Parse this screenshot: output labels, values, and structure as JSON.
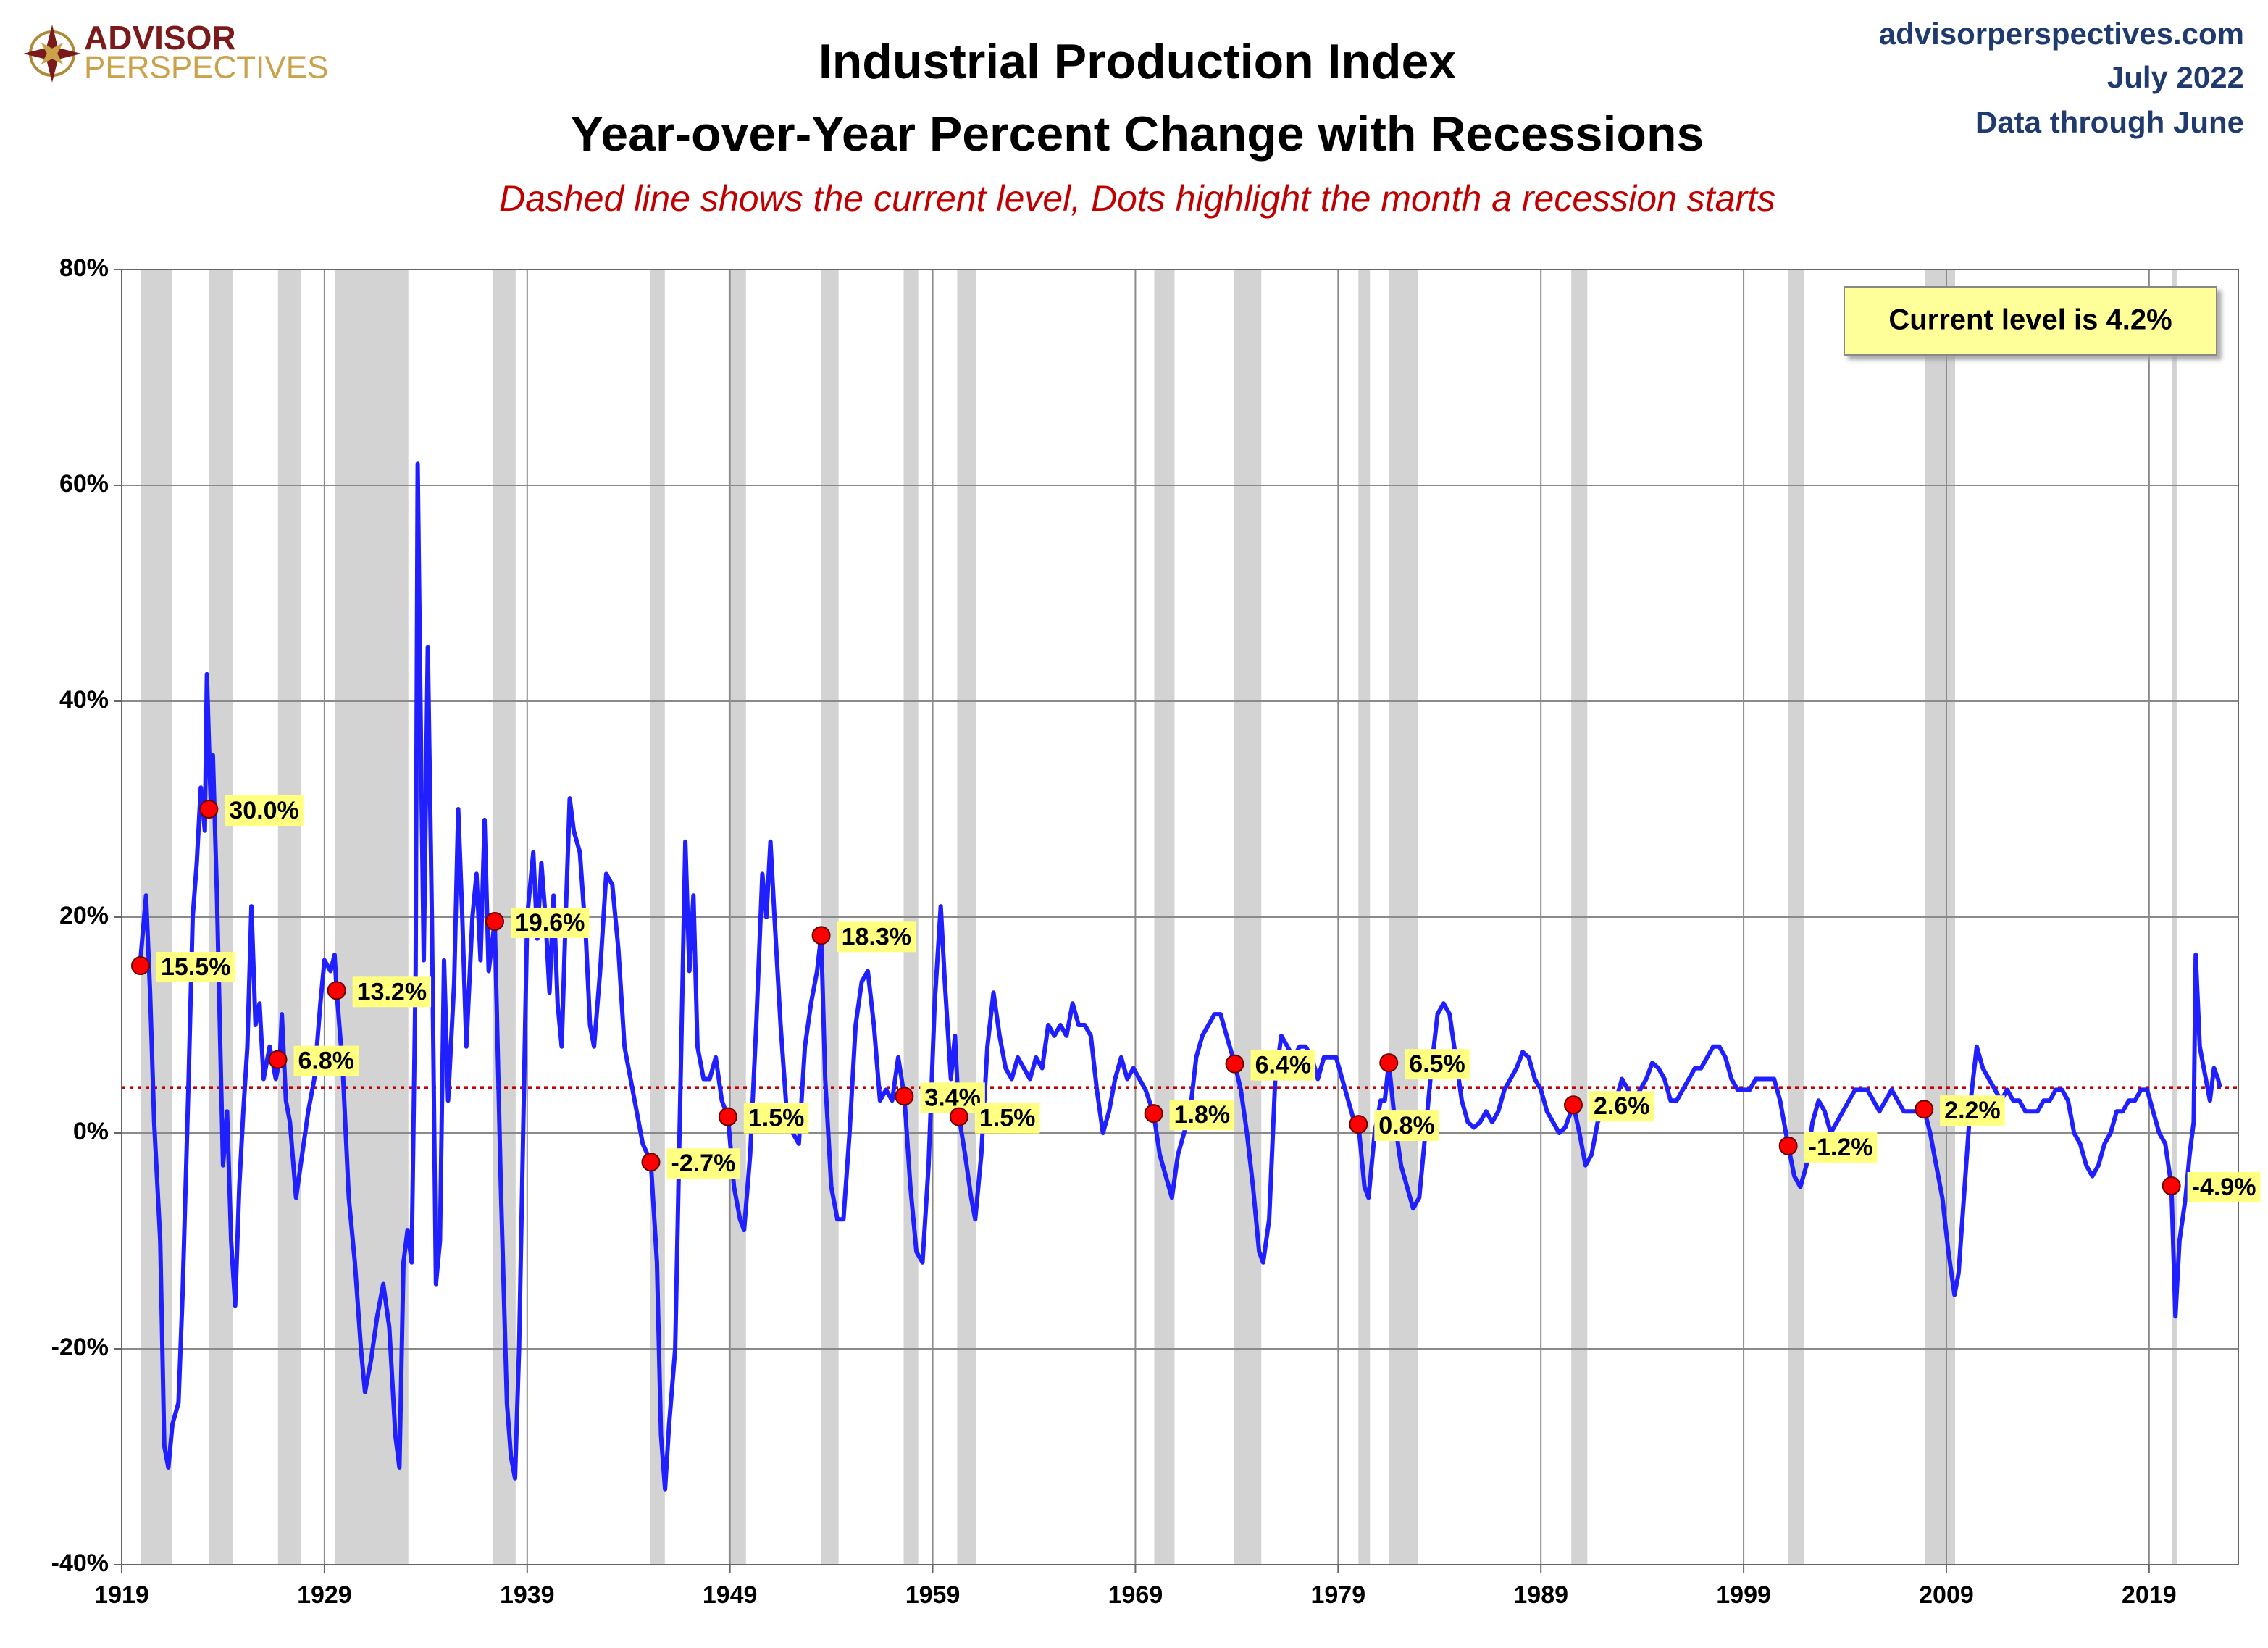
{
  "chart_data": {
    "type": "line",
    "title": "Industrial Production Index",
    "title_line2": "Year-over-Year Percent Change with Recessions",
    "subtitle": "Dashed line shows the current level, Dots highlight the month a recession starts",
    "logo": {
      "line1": "ADVISOR",
      "line2": "PERSPECTIVES"
    },
    "header_right": [
      "advisorperspectives.com",
      "July 2022",
      "Data through June"
    ],
    "annotation": "Current level is 4.2%",
    "current_level": 4.2,
    "current_level_color": "#cc0000",
    "xlim": [
      1919,
      2023.4
    ],
    "xticks": [
      1919,
      1929,
      1939,
      1949,
      1959,
      1969,
      1979,
      1989,
      1999,
      2009,
      2019
    ],
    "ylim": [
      -40,
      80
    ],
    "yticks": [
      {
        "value": -40,
        "label": "-40%"
      },
      {
        "value": -20,
        "label": "-20%"
      },
      {
        "value": 0,
        "label": "0%"
      },
      {
        "value": 20,
        "label": "20%"
      },
      {
        "value": 40,
        "label": "40%"
      },
      {
        "value": 60,
        "label": "60%"
      },
      {
        "value": 80,
        "label": "80%"
      }
    ],
    "grid": true,
    "recession_color": "#d3d3d3",
    "recessions": [
      [
        1919.93,
        1921.5
      ],
      [
        1923.29,
        1924.5
      ],
      [
        1926.71,
        1927.86
      ],
      [
        1929.5,
        1933.14
      ],
      [
        1937.29,
        1938.43
      ],
      [
        1945.07,
        1945.79
      ],
      [
        1948.93,
        1949.79
      ],
      [
        1953.5,
        1954.36
      ],
      [
        1957.57,
        1958.29
      ],
      [
        1960.21,
        1961.14
      ],
      [
        1969.93,
        1970.93
      ],
      [
        1973.86,
        1975.21
      ],
      [
        1980.0,
        1980.57
      ],
      [
        1981.5,
        1982.93
      ],
      [
        1990.5,
        1991.29
      ],
      [
        2001.21,
        2002.0
      ],
      [
        2007.93,
        2009.43
      ],
      [
        2020.14,
        2020.36
      ]
    ],
    "series": [
      {
        "color": "#1f1fff",
        "x": [
          1919.9,
          1920.2,
          1920.4,
          1920.6,
          1920.9,
          1921.1,
          1921.3,
          1921.5,
          1921.8,
          1922.0,
          1922.3,
          1922.5,
          1922.7,
          1922.9,
          1923.1,
          1923.2,
          1923.4,
          1923.5,
          1923.7,
          1923.9,
          1924.0,
          1924.2,
          1924.4,
          1924.6,
          1924.8,
          1925.0,
          1925.2,
          1925.4,
          1925.6,
          1925.8,
          1926.0,
          1926.3,
          1926.6,
          1926.8,
          1926.9,
          1927.1,
          1927.3,
          1927.6,
          1927.9,
          1928.2,
          1928.5,
          1928.8,
          1929.0,
          1929.3,
          1929.5,
          1929.6,
          1929.9,
          1930.2,
          1930.5,
          1930.8,
          1931.0,
          1931.3,
          1931.6,
          1931.9,
          1932.2,
          1932.5,
          1932.7,
          1932.9,
          1933.1,
          1933.3,
          1933.5,
          1933.6,
          1933.8,
          1933.9,
          1934.1,
          1934.3,
          1934.5,
          1934.7,
          1934.9,
          1935.1,
          1935.4,
          1935.6,
          1935.8,
          1936.0,
          1936.3,
          1936.5,
          1936.7,
          1936.9,
          1937.1,
          1937.4,
          1937.7,
          1938.0,
          1938.2,
          1938.4,
          1938.6,
          1938.8,
          1939.0,
          1939.3,
          1939.5,
          1939.7,
          1939.9,
          1940.1,
          1940.3,
          1940.5,
          1940.7,
          1940.9,
          1941.1,
          1941.3,
          1941.6,
          1941.9,
          1942.1,
          1942.3,
          1942.6,
          1942.9,
          1943.2,
          1943.5,
          1943.8,
          1944.1,
          1944.4,
          1944.7,
          1945.1,
          1945.4,
          1945.6,
          1945.8,
          1946.0,
          1946.3,
          1946.6,
          1946.8,
          1947.0,
          1947.2,
          1947.4,
          1947.7,
          1948.0,
          1948.3,
          1948.6,
          1948.9,
          1949.2,
          1949.5,
          1949.7,
          1950.0,
          1950.3,
          1950.6,
          1950.8,
          1951.0,
          1951.2,
          1951.5,
          1951.8,
          1952.1,
          1952.4,
          1952.7,
          1953.0,
          1953.3,
          1953.5,
          1953.7,
          1954.0,
          1954.3,
          1954.6,
          1954.9,
          1955.2,
          1955.5,
          1955.8,
          1956.1,
          1956.4,
          1956.7,
          1957.0,
          1957.3,
          1957.6,
          1957.9,
          1958.2,
          1958.5,
          1958.8,
          1959.1,
          1959.4,
          1959.6,
          1959.9,
          1960.1,
          1960.3,
          1960.6,
          1960.9,
          1961.1,
          1961.4,
          1961.7,
          1962.0,
          1962.3,
          1962.6,
          1962.9,
          1963.2,
          1963.5,
          1963.8,
          1964.1,
          1964.4,
          1964.7,
          1965.0,
          1965.3,
          1965.6,
          1965.9,
          1966.2,
          1966.5,
          1966.8,
          1967.1,
          1967.4,
          1967.7,
          1968.0,
          1968.3,
          1968.6,
          1968.9,
          1969.2,
          1969.5,
          1969.9,
          1970.2,
          1970.5,
          1970.8,
          1971.1,
          1971.4,
          1971.7,
          1972.0,
          1972.3,
          1972.6,
          1972.9,
          1973.2,
          1973.5,
          1973.9,
          1974.2,
          1974.5,
          1974.8,
          1975.1,
          1975.3,
          1975.6,
          1975.9,
          1976.2,
          1976.5,
          1976.8,
          1977.1,
          1977.4,
          1977.7,
          1978.0,
          1978.3,
          1978.6,
          1978.9,
          1979.2,
          1979.5,
          1979.8,
          1980.0,
          1980.3,
          1980.5,
          1980.8,
          1981.1,
          1981.3,
          1981.5,
          1981.8,
          1982.1,
          1982.4,
          1982.7,
          1983.0,
          1983.3,
          1983.6,
          1983.9,
          1984.2,
          1984.5,
          1984.8,
          1985.1,
          1985.4,
          1985.7,
          1986.0,
          1986.3,
          1986.6,
          1986.9,
          1987.2,
          1987.5,
          1987.8,
          1988.1,
          1988.4,
          1988.7,
          1989.0,
          1989.3,
          1989.6,
          1989.9,
          1990.2,
          1990.6,
          1990.9,
          1991.2,
          1991.5,
          1991.8,
          1992.1,
          1992.4,
          1992.7,
          1993.0,
          1993.3,
          1993.6,
          1993.9,
          1994.2,
          1994.5,
          1994.8,
          1995.1,
          1995.4,
          1995.7,
          1996.0,
          1996.3,
          1996.6,
          1996.9,
          1997.2,
          1997.5,
          1997.8,
          1998.1,
          1998.4,
          1998.7,
          1999.0,
          1999.3,
          1999.6,
          1999.9,
          2000.2,
          2000.5,
          2000.8,
          2001.2,
          2001.5,
          2001.8,
          2002.1,
          2002.4,
          2002.7,
          2003.0,
          2003.3,
          2003.6,
          2003.9,
          2004.2,
          2004.5,
          2004.8,
          2005.1,
          2005.4,
          2005.7,
          2006.0,
          2006.3,
          2006.6,
          2006.9,
          2007.2,
          2007.5,
          2007.9,
          2008.2,
          2008.5,
          2008.8,
          2009.1,
          2009.4,
          2009.6,
          2009.9,
          2010.2,
          2010.5,
          2010.8,
          2011.1,
          2011.4,
          2011.7,
          2012.0,
          2012.3,
          2012.6,
          2012.9,
          2013.2,
          2013.5,
          2013.8,
          2014.1,
          2014.4,
          2014.7,
          2015.0,
          2015.3,
          2015.6,
          2015.9,
          2016.2,
          2016.5,
          2016.8,
          2017.1,
          2017.4,
          2017.7,
          2018.0,
          2018.3,
          2018.6,
          2018.9,
          2019.2,
          2019.5,
          2019.8,
          2020.1,
          2020.3,
          2020.5,
          2020.8,
          2021.0,
          2021.2,
          2021.3,
          2021.5,
          2021.8,
          2022.0,
          2022.2,
          2022.4,
          2022.5
        ],
        "values": [
          15.5,
          22,
          13,
          1,
          -10,
          -29,
          -31,
          -27,
          -25,
          -15,
          5,
          20,
          25,
          32,
          28,
          42.5,
          30,
          35,
          22,
          5,
          -3,
          2,
          -10,
          -16,
          -5,
          2,
          8,
          21,
          10,
          12,
          5,
          8,
          5,
          6.8,
          11,
          3,
          1,
          -6,
          -2,
          2,
          5,
          12,
          16,
          15,
          16.5,
          13.2,
          6,
          -6,
          -12,
          -20,
          -24,
          -21,
          -17,
          -14,
          -18,
          -28,
          -31,
          -12,
          -9,
          -12,
          15,
          62,
          30,
          16,
          45,
          20,
          -14,
          -10,
          16,
          3,
          14,
          30,
          20,
          8,
          20,
          24,
          16,
          29,
          15,
          19.6,
          -5,
          -25,
          -30,
          -32,
          -20,
          0,
          20,
          26,
          18,
          25,
          20,
          13,
          22,
          12,
          8,
          20,
          31,
          28,
          26,
          18,
          10,
          8,
          15,
          24,
          23,
          17,
          8,
          5,
          2,
          -1,
          -2.7,
          -12,
          -28,
          -33,
          -27,
          -20,
          8,
          27,
          15,
          22,
          8,
          5,
          5,
          7,
          3,
          1.5,
          -5,
          -8,
          -9,
          -2,
          10,
          24,
          20,
          27,
          20,
          10,
          2,
          0,
          -1,
          8,
          12,
          15,
          18.3,
          5,
          -5,
          -8,
          -8,
          0,
          10,
          14,
          15,
          10,
          3,
          4,
          3,
          7,
          3.4,
          -5,
          -11,
          -12,
          -3,
          12,
          21,
          14,
          5,
          9,
          1.5,
          -2,
          -6,
          -8,
          -2,
          8,
          13,
          9,
          6,
          5,
          7,
          6,
          5,
          7,
          6,
          10,
          9,
          10,
          9,
          12,
          10,
          10,
          9,
          4,
          0,
          2,
          5,
          7,
          5,
          6,
          5,
          4,
          1.8,
          -2,
          -4,
          -6,
          -2,
          0,
          2,
          7,
          9,
          10,
          11,
          11,
          9,
          6.4,
          4,
          0,
          -5,
          -11,
          -12,
          -8,
          5,
          9,
          8,
          7,
          8,
          8,
          7,
          5,
          7,
          7,
          7,
          5,
          3,
          1,
          0.8,
          -5,
          -6,
          0,
          3,
          3,
          6.5,
          1,
          -3,
          -5,
          -7,
          -6,
          0,
          6,
          11,
          12,
          11,
          7,
          3,
          1,
          0.5,
          1,
          2,
          1,
          2,
          4,
          5,
          6,
          7.5,
          7,
          5,
          4,
          2,
          1,
          0,
          0.5,
          2.6,
          0,
          -3,
          -2,
          1,
          2,
          3,
          3,
          5,
          4,
          3,
          4,
          5,
          6.5,
          6,
          5,
          3,
          3,
          4,
          5,
          6,
          6,
          7,
          8,
          8,
          7,
          5,
          4,
          4,
          4,
          5,
          5,
          5,
          5,
          3,
          -1.2,
          -4,
          -5,
          -3,
          1,
          3,
          2,
          0,
          1,
          2,
          3,
          4,
          4,
          4,
          3,
          2,
          3,
          4,
          3,
          2,
          2,
          2,
          2.2,
          0,
          -3,
          -6,
          -11,
          -15,
          -13,
          -5,
          3,
          8,
          6,
          5,
          4,
          3,
          4,
          3,
          3,
          2,
          2,
          2,
          3,
          3,
          4,
          4,
          3,
          0,
          -1,
          -3,
          -4,
          -3,
          -1,
          0,
          2,
          2,
          3,
          3,
          4,
          4,
          2,
          0,
          -1,
          -4.9,
          -17,
          -10,
          -6,
          -2,
          1,
          16.5,
          8,
          5,
          3,
          6,
          5,
          4.2
        ]
      }
    ],
    "recession_starts": {
      "color": "#ff0000",
      "x": [
        1919.93,
        1923.3,
        1926.7,
        1929.6,
        1937.4,
        1945.1,
        1948.9,
        1953.5,
        1957.6,
        1960.3,
        1969.9,
        1973.9,
        1980.0,
        1981.5,
        1990.6,
        2001.2,
        2007.9,
        2020.1
      ],
      "values": [
        15.5,
        30.0,
        6.8,
        13.2,
        19.6,
        -2.7,
        1.5,
        18.3,
        3.4,
        1.5,
        1.8,
        6.4,
        0.8,
        6.5,
        2.6,
        -1.2,
        2.2,
        -4.9
      ],
      "value_labels": [
        "15.5%",
        "30.0%",
        "6.8%",
        "13.2%",
        "19.6%",
        "-2.7%",
        "1.5%",
        "18.3%",
        "3.4%",
        "1.5%",
        "1.8%",
        "6.4%",
        "0.8%",
        "6.5%",
        "2.6%",
        "-1.2%",
        "2.2%",
        "-4.9%"
      ]
    }
  }
}
